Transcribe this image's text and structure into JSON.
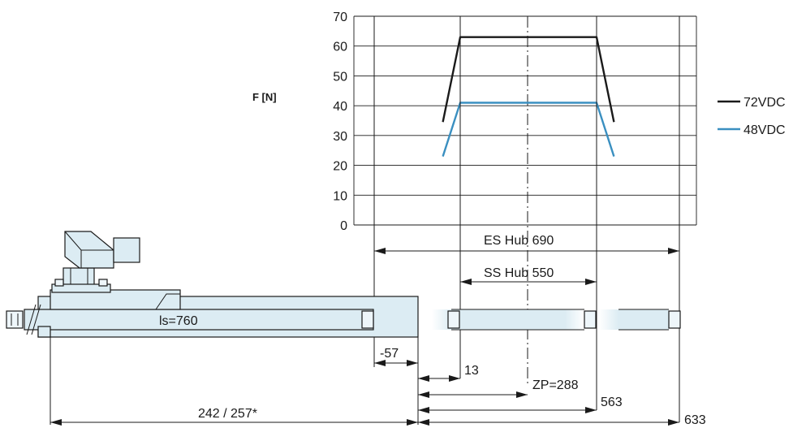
{
  "chart_data": {
    "type": "line",
    "ylabel": "F [N]",
    "ylim": [
      0,
      70
    ],
    "yticks": [
      "0",
      "10",
      "20",
      "30",
      "40",
      "50",
      "60",
      "70"
    ],
    "x": [
      -57,
      13,
      563,
      633
    ],
    "series": [
      {
        "name": "72VDC",
        "color": "#1a1a1a",
        "values": [
          34.5,
          63,
          63,
          34.5
        ]
      },
      {
        "name": "48VDC",
        "color": "#3a8fc0",
        "values": [
          23,
          41,
          41,
          23
        ]
      }
    ]
  },
  "diagram": {
    "es_hub_label": "ES Hub 690",
    "ss_hub_label": "SS Hub 550",
    "ls_label": "ls=760",
    "dim_neg57": "-57",
    "dim_13": "13",
    "dim_zp": "ZP=288",
    "dim_563": "563",
    "dim_633": "633",
    "dim_242": "242 / 257*"
  }
}
